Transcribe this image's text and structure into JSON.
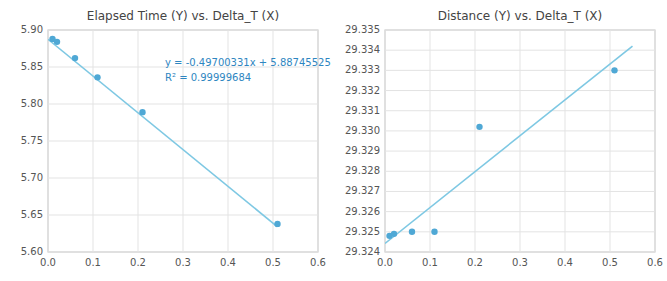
{
  "chart_data": [
    {
      "type": "scatter",
      "title": "Elapsed Time (Y) vs. Delta_T (X)",
      "series": [
        {
          "type": "scatter",
          "color": "#4FA8D5",
          "x": [
            0.01,
            0.02,
            0.06,
            0.11,
            0.21,
            0.51
          ],
          "values": [
            5.888,
            5.884,
            5.862,
            5.836,
            5.789,
            5.638
          ]
        },
        {
          "type": "line",
          "color": "#7EC8E3",
          "x": [
            0.0,
            0.51
          ],
          "values": [
            5.88745525,
            5.63398356
          ]
        }
      ],
      "xlim": [
        0.0,
        0.6
      ],
      "ylim": [
        5.6,
        5.9
      ],
      "xticks": [
        {
          "value": 0.0,
          "label": "0.0"
        },
        0.1,
        0.2,
        0.3,
        0.4,
        0.5,
        0.6
      ],
      "yticks": [
        {
          "value": 5.6,
          "label": "5.60"
        },
        5.65,
        {
          "value": 5.7,
          "label": "5.70"
        },
        5.75,
        {
          "value": 5.8,
          "label": "5.80"
        },
        5.85,
        {
          "value": 5.9,
          "label": "5.90"
        }
      ],
      "grid": true,
      "annotations": [
        {
          "text": "y = -0.49700331x + 5.88745525\nR² = 0.99999684",
          "x": 0.26,
          "y": 5.845,
          "color": "#2E86C1"
        }
      ]
    },
    {
      "type": "scatter",
      "title": "Distance (Y) vs. Delta_T (X)",
      "series": [
        {
          "type": "scatter",
          "color": "#4FA8D5",
          "x": [
            0.01,
            0.02,
            0.06,
            0.11,
            0.21,
            0.51
          ],
          "values": [
            29.3248,
            29.3249,
            29.325,
            29.325,
            29.3302,
            29.333
          ]
        },
        {
          "type": "line",
          "color": "#7EC8E3",
          "x": [
            0.0,
            0.55
          ],
          "values": [
            29.32442249,
            29.33420595
          ]
        }
      ],
      "xlim": [
        0.0,
        0.6
      ],
      "ylim": [
        29.324,
        29.335
      ],
      "xticks": [
        {
          "value": 0.0,
          "label": "0.0"
        },
        0.1,
        0.2,
        0.3,
        0.4,
        0.5,
        0.6
      ],
      "yticks": [
        29.324,
        29.325,
        29.326,
        29.327,
        29.328,
        29.329,
        {
          "value": 29.33,
          "label": "29.330"
        },
        29.331,
        29.332,
        29.333,
        29.334,
        29.335
      ],
      "grid": true
    }
  ]
}
